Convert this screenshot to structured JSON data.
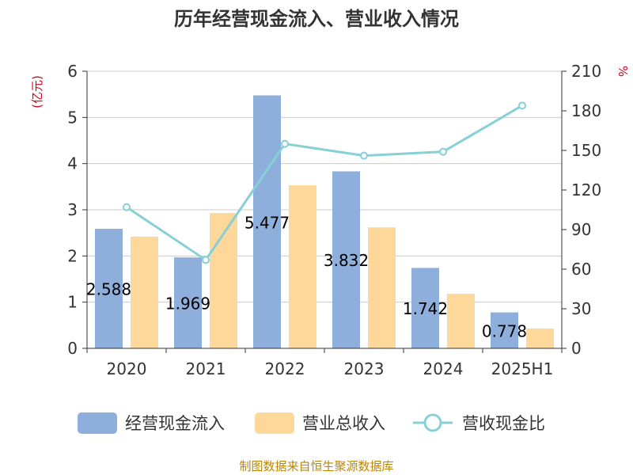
{
  "chart_data": {
    "type": "bar",
    "title": "历年经营现金流入、营业收入情况",
    "categories": [
      "2020",
      "2021",
      "2022",
      "2023",
      "2024",
      "2025H1"
    ],
    "y_left": {
      "unit": "(亿元)",
      "range": [
        0,
        6
      ],
      "ticks": [
        "0",
        "1",
        "2",
        "3",
        "4",
        "5",
        "6"
      ]
    },
    "y_right": {
      "unit": "%",
      "range": [
        0,
        210
      ],
      "ticks": [
        "0",
        "30",
        "60",
        "90",
        "120",
        "150",
        "180",
        "210"
      ]
    },
    "series": [
      {
        "name": "经营现金流入",
        "type": "bar",
        "axis": "left",
        "color": "#8eaedc",
        "values": [
          2.588,
          1.969,
          5.477,
          3.832,
          1.742,
          0.778
        ],
        "labels": [
          "2.588",
          "1.969",
          "5.477",
          "3.832",
          "1.742",
          "0.778"
        ]
      },
      {
        "name": "营业总收入",
        "type": "bar",
        "axis": "left",
        "color": "#fdd89a",
        "values": [
          2.42,
          2.93,
          3.53,
          2.62,
          1.18,
          0.43
        ]
      },
      {
        "name": "营收现金比",
        "type": "line",
        "axis": "right",
        "color": "#86d0d6",
        "values": [
          107,
          67,
          155,
          146,
          149,
          184
        ]
      }
    ],
    "grid": true,
    "legend": "bottom"
  },
  "footer": {
    "source": "制图数据来自恒生聚源数据库"
  }
}
